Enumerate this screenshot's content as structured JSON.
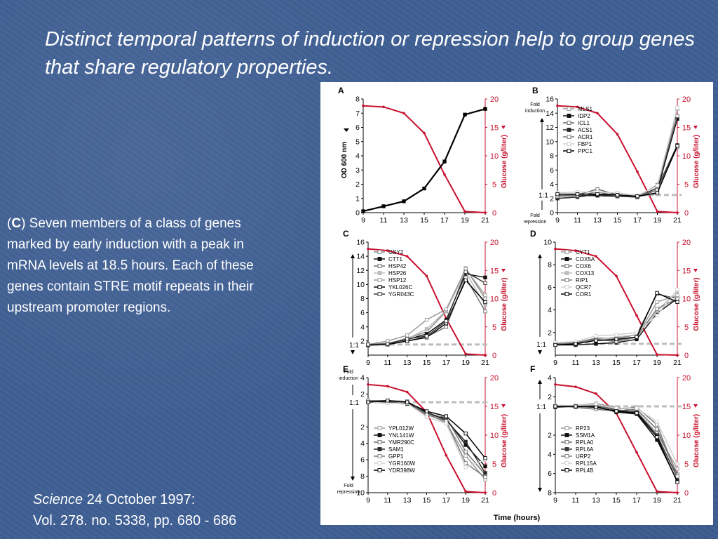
{
  "slide": {
    "title": "Distinct temporal patterns of induction or repression help to group genes that share regulatory properties.",
    "caption_letter": "C",
    "caption_open": "(",
    "caption_rest": ") Seven members of a class of genes marked by early induction with a peak in mRNA levels at 18.5 hours. Each of these genes contain STRE motif repeats in their upstream promoter regions.",
    "citation_journal": "Science",
    "citation_date": " 24 October 1997:",
    "citation_volume": "Vol. 278. no. 5338, pp. 680 - 686"
  },
  "colors": {
    "background": "#3f5f93",
    "glucose": "#c8102e",
    "ref_line": "#bdbdbd"
  },
  "figure": {
    "x_axis_title": "Time (hours)",
    "glucose_label": "Glucose (g/liter)",
    "od_label": "OD 600 nm",
    "fold_induction": "Fold induction",
    "fold_repression": "Fold repression",
    "ref_label": "1:1"
  },
  "chart_data": [
    {
      "panel": "A",
      "type": "line",
      "x": [
        9,
        11,
        13,
        15,
        17,
        19,
        21
      ],
      "ylim": [
        0,
        8
      ],
      "yticks": [
        0,
        1,
        2,
        3,
        4,
        5,
        6,
        7,
        8
      ],
      "y2lim": [
        0,
        20
      ],
      "y2ticks": [
        0,
        5,
        10,
        15,
        20
      ],
      "series": [
        {
          "name": "OD 600 nm",
          "axis": "left",
          "color": "#000000",
          "marker": "square",
          "values": [
            0.1,
            0.45,
            0.8,
            1.7,
            3.6,
            6.9,
            7.3
          ]
        },
        {
          "name": "Glucose (g/liter)",
          "axis": "right",
          "color": "#c8102e",
          "marker": "dot",
          "values": [
            18.8,
            18.6,
            17.5,
            14.0,
            6.7,
            0.2,
            0.0
          ]
        }
      ]
    },
    {
      "panel": "B",
      "type": "line",
      "x": [
        9,
        11,
        13,
        15,
        17,
        19,
        21
      ],
      "ylim": [
        0,
        16
      ],
      "yticks": [
        0,
        2,
        4,
        6,
        8,
        10,
        12,
        14,
        16
      ],
      "ref": 2.5,
      "y2lim": [
        0,
        20
      ],
      "y2ticks": [
        0,
        5,
        10,
        15,
        20
      ],
      "glucose": [
        18.8,
        18.6,
        17.5,
        13.8,
        7.2,
        0.2,
        0.0
      ],
      "series": [
        {
          "name": "MLS1",
          "color": "#9a9a9a",
          "values": [
            2.0,
            2.2,
            2.6,
            2.3,
            2.3,
            2.6,
            14.6
          ]
        },
        {
          "name": "IDP2",
          "color": "#111111",
          "values": [
            2.4,
            2.4,
            2.4,
            2.3,
            2.2,
            3.2,
            13.2
          ]
        },
        {
          "name": "ICL1",
          "color": "#666666",
          "values": [
            2.4,
            2.5,
            3.3,
            2.5,
            2.3,
            3.9,
            13.6
          ]
        },
        {
          "name": "ACS1",
          "color": "#2a2a2a",
          "values": [
            2.0,
            2.2,
            2.6,
            2.3,
            2.2,
            3.5,
            9.5
          ]
        },
        {
          "name": "ACR1",
          "color": "#7a7a7a",
          "values": [
            2.3,
            2.4,
            2.9,
            2.4,
            2.3,
            3.2,
            9.2
          ]
        },
        {
          "name": "FBP1",
          "color": "#cfcfcf",
          "values": [
            2.8,
            2.9,
            2.9,
            2.8,
            2.4,
            3.8,
            14.8
          ]
        },
        {
          "name": "PPC1",
          "color": "#000000",
          "values": [
            2.6,
            2.6,
            2.6,
            2.5,
            2.3,
            2.8,
            9.4
          ]
        }
      ]
    },
    {
      "panel": "C",
      "type": "line",
      "x": [
        9,
        11,
        13,
        15,
        17,
        19,
        21
      ],
      "ylim": [
        0,
        16
      ],
      "yticks": [
        2,
        4,
        6,
        8,
        10,
        12,
        14,
        16
      ],
      "ref": 1.5,
      "y2lim": [
        0,
        20
      ],
      "y2ticks": [
        0,
        5,
        10,
        15,
        20
      ],
      "glucose": [
        18.8,
        18.5,
        17.5,
        14.0,
        6.5,
        0.2,
        0.0
      ],
      "series": [
        {
          "name": "GSY2",
          "color": "#8a8a8a",
          "values": [
            1.4,
            1.6,
            2.4,
            3.3,
            6.2,
            12.3,
            8.0
          ]
        },
        {
          "name": "CTT1",
          "color": "#111111",
          "values": [
            1.4,
            1.7,
            2.2,
            3.0,
            5.0,
            11.5,
            11.0
          ]
        },
        {
          "name": "HSP42",
          "color": "#6e6e6e",
          "values": [
            1.5,
            1.6,
            2.0,
            2.6,
            4.0,
            11.0,
            6.2
          ]
        },
        {
          "name": "HSP26",
          "color": "#bdbdbd",
          "values": [
            1.5,
            1.7,
            2.3,
            3.7,
            6.3,
            11.8,
            7.0
          ]
        },
        {
          "name": "HSP12",
          "color": "#9c9c9c",
          "values": [
            1.5,
            2.0,
            2.8,
            5.0,
            6.5,
            12.2,
            8.5
          ]
        },
        {
          "name": "YKL026C",
          "color": "#000000",
          "values": [
            1.4,
            1.5,
            2.0,
            2.5,
            4.5,
            10.6,
            7.5
          ]
        },
        {
          "name": "YGR043C",
          "color": "#3a3a3a",
          "values": [
            1.5,
            1.6,
            2.3,
            2.7,
            4.8,
            11.8,
            10.2
          ]
        }
      ]
    },
    {
      "panel": "D",
      "type": "line",
      "x": [
        9,
        11,
        13,
        15,
        17,
        19,
        21
      ],
      "ylim": [
        0,
        10
      ],
      "yticks": [
        2,
        4,
        6,
        8,
        10
      ],
      "ref": 1,
      "y2lim": [
        0,
        20
      ],
      "y2ticks": [
        0,
        5,
        10,
        15,
        20
      ],
      "glucose": [
        18.8,
        18.5,
        17.5,
        14.0,
        7.0,
        0.1,
        0.0
      ],
      "series": [
        {
          "name": "CYT1",
          "color": "#9a9a9a",
          "values": [
            1.0,
            1.0,
            1.3,
            1.3,
            1.6,
            4.7,
            5.3
          ]
        },
        {
          "name": "COX5A",
          "color": "#111111",
          "values": [
            0.9,
            0.9,
            1.0,
            1.1,
            1.4,
            3.7,
            5.0
          ]
        },
        {
          "name": "COX6",
          "color": "#6e6e6e",
          "values": [
            1.0,
            1.1,
            1.5,
            1.5,
            1.8,
            5.4,
            5.0
          ]
        },
        {
          "name": "COX13",
          "color": "#bdbdbd",
          "values": [
            1.1,
            1.1,
            1.4,
            1.6,
            1.8,
            3.9,
            5.7
          ]
        },
        {
          "name": "RIP1",
          "color": "#7a7a7a",
          "values": [
            1.0,
            1.1,
            1.4,
            1.2,
            1.6,
            4.1,
            5.0
          ]
        },
        {
          "name": "QCR7",
          "color": "#d0d0d0",
          "values": [
            1.1,
            1.2,
            1.7,
            1.8,
            2.0,
            3.5,
            5.8
          ]
        },
        {
          "name": "COR1",
          "color": "#000000",
          "values": [
            0.9,
            1.0,
            1.3,
            1.4,
            1.6,
            5.5,
            4.7
          ]
        }
      ]
    },
    {
      "panel": "E",
      "type": "line",
      "x": [
        9,
        11,
        13,
        15,
        17,
        19,
        21
      ],
      "ylim": [
        -10,
        4
      ],
      "yticks": [
        4,
        2,
        -2,
        -4,
        -6,
        -8,
        -10
      ],
      "ref": 1,
      "y2lim": [
        0,
        20
      ],
      "y2ticks": [
        0,
        5,
        10,
        15,
        20
      ],
      "glucose": [
        18.8,
        18.5,
        17.5,
        14.0,
        6.5,
        0.2,
        0.0
      ],
      "series": [
        {
          "name": "YPL012W",
          "color": "#9a9a9a",
          "values": [
            1.1,
            1.1,
            0.9,
            -0.4,
            -1.5,
            -5.5,
            -8.4
          ]
        },
        {
          "name": "YNL141W",
          "color": "#111111",
          "values": [
            1.0,
            1.0,
            1.1,
            -0.3,
            -1.0,
            -4.2,
            -6.8
          ]
        },
        {
          "name": "YMR290C",
          "color": "#6e6e6e",
          "values": [
            1.0,
            1.1,
            1.0,
            -0.6,
            -0.8,
            -5.0,
            -7.8
          ]
        },
        {
          "name": "SAM1",
          "color": "#2a2a2a",
          "values": [
            1.1,
            1.0,
            0.8,
            -0.2,
            -1.2,
            -3.8,
            -7.6
          ]
        },
        {
          "name": "GPP1",
          "color": "#7a7a7a",
          "values": [
            1.2,
            1.2,
            1.1,
            -0.5,
            -1.3,
            -6.4,
            -8.1
          ]
        },
        {
          "name": "YGR160W",
          "color": "#cfcfcf",
          "values": [
            1.0,
            0.9,
            0.9,
            -0.8,
            -1.6,
            -6.9,
            -6.0
          ]
        },
        {
          "name": "YDR398W",
          "color": "#000000",
          "values": [
            1.0,
            1.2,
            1.0,
            -0.1,
            -0.7,
            -2.8,
            -5.8
          ]
        }
      ]
    },
    {
      "panel": "F",
      "type": "line",
      "x": [
        9,
        11,
        13,
        15,
        17,
        19,
        21
      ],
      "ylim": [
        -8,
        4
      ],
      "yticks": [
        4,
        2,
        -2,
        -4,
        -6,
        -8
      ],
      "ref": 1,
      "y2lim": [
        0,
        20
      ],
      "y2ticks": [
        0,
        5,
        10,
        15,
        20
      ],
      "glucose": [
        18.8,
        18.4,
        17.2,
        13.8,
        7.0,
        0.2,
        0.0
      ],
      "series": [
        {
          "name": "RP23",
          "color": "#9a9a9a",
          "values": [
            1.0,
            1.1,
            1.3,
            0.9,
            0.5,
            -1.8,
            -5.5
          ]
        },
        {
          "name": "SSM1A",
          "color": "#111111",
          "values": [
            1.0,
            1.0,
            1.0,
            0.4,
            0.2,
            -2.5,
            -6.8
          ]
        },
        {
          "name": "RPLA0",
          "color": "#6e6e6e",
          "values": [
            1.1,
            0.9,
            0.7,
            0.5,
            0.7,
            -1.4,
            -6.1
          ]
        },
        {
          "name": "RPL6A",
          "color": "#3a3a3a",
          "values": [
            0.9,
            1.0,
            1.1,
            0.6,
            0.4,
            -2.0,
            -6.4
          ]
        },
        {
          "name": "URP2",
          "color": "#7a7a7a",
          "values": [
            1.0,
            1.1,
            1.1,
            0.7,
            0.9,
            -0.9,
            -6.3
          ]
        },
        {
          "name": "RPL15A",
          "color": "#cfcfcf",
          "values": [
            1.1,
            1.1,
            1.2,
            0.8,
            0.8,
            -0.6,
            -5.0
          ]
        },
        {
          "name": "RPL4B",
          "color": "#000000",
          "values": [
            1.0,
            1.0,
            0.9,
            0.5,
            0.3,
            -2.2,
            -6.9
          ]
        }
      ]
    }
  ]
}
